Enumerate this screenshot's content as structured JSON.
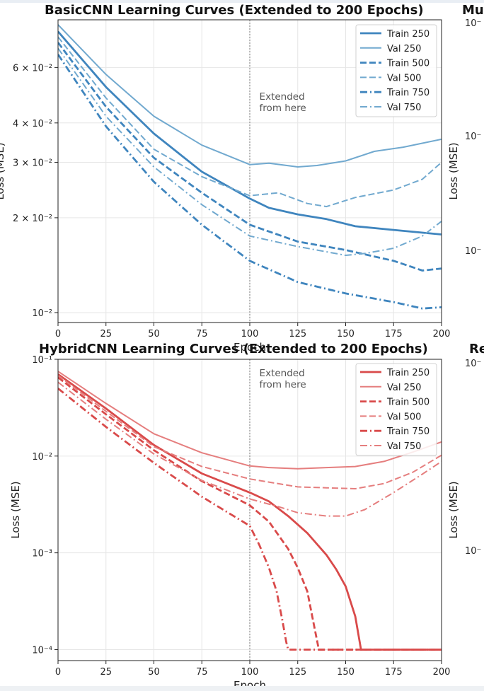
{
  "chart_data": [
    {
      "type": "line",
      "title": "BasicCNN Learning Curves (Extended to 200 Epochs)",
      "xlabel": "Epoch",
      "ylabel": "Loss (MSE)",
      "yscale": "log",
      "xlim": [
        0,
        200
      ],
      "ylim": [
        0.0093,
        0.085
      ],
      "xticks": [
        0,
        25,
        50,
        75,
        100,
        125,
        150,
        175,
        200
      ],
      "yticks": [
        {
          "value": 0.01,
          "label": "10⁻²"
        },
        {
          "value": 0.02,
          "label": "2 × 10⁻²"
        },
        {
          "value": 0.03,
          "label": "3 × 10⁻²"
        },
        {
          "value": 0.04,
          "label": "4 × 10⁻²"
        },
        {
          "value": 0.06,
          "label": "6 × 10⁻²"
        }
      ],
      "grid": true,
      "legend": "top-right",
      "vline": {
        "x": 100
      },
      "annotation": {
        "x": 105,
        "lines": [
          "Extended",
          "from here"
        ]
      },
      "colors": {
        "train": "#3f85be",
        "val": "#71a9cf"
      },
      "series": [
        {
          "name": "Train 250",
          "style": "solid",
          "kind": "train",
          "x": [
            0,
            25,
            50,
            75,
            100,
            110,
            125,
            140,
            155,
            175,
            200
          ],
          "y": [
            0.078,
            0.052,
            0.037,
            0.028,
            0.023,
            0.0215,
            0.0205,
            0.0198,
            0.0188,
            0.0183,
            0.0177
          ]
        },
        {
          "name": "Val 250",
          "style": "solid",
          "kind": "val",
          "x": [
            0,
            25,
            50,
            75,
            100,
            110,
            125,
            135,
            150,
            165,
            180,
            200
          ],
          "y": [
            0.082,
            0.057,
            0.042,
            0.034,
            0.0295,
            0.0298,
            0.029,
            0.0293,
            0.0303,
            0.0325,
            0.0335,
            0.0355
          ]
        },
        {
          "name": "Train 500",
          "style": "dashed",
          "kind": "train",
          "x": [
            0,
            25,
            50,
            75,
            100,
            125,
            150,
            175,
            190,
            200
          ],
          "y": [
            0.072,
            0.045,
            0.031,
            0.024,
            0.019,
            0.0168,
            0.0158,
            0.0146,
            0.0136,
            0.0138
          ]
        },
        {
          "name": "Val 500",
          "style": "dashed",
          "kind": "val",
          "x": [
            0,
            25,
            50,
            75,
            100,
            115,
            130,
            140,
            155,
            175,
            190,
            200
          ],
          "y": [
            0.075,
            0.048,
            0.033,
            0.027,
            0.0235,
            0.024,
            0.0222,
            0.0217,
            0.0232,
            0.0245,
            0.0265,
            0.03
          ]
        },
        {
          "name": "Train 750",
          "style": "dashdot",
          "kind": "train",
          "x": [
            0,
            25,
            50,
            75,
            100,
            125,
            150,
            175,
            190,
            200
          ],
          "y": [
            0.066,
            0.039,
            0.026,
            0.019,
            0.0146,
            0.0125,
            0.0115,
            0.0108,
            0.0103,
            0.0104
          ]
        },
        {
          "name": "Val 750",
          "style": "dashdot",
          "kind": "val",
          "x": [
            0,
            25,
            50,
            75,
            100,
            125,
            150,
            160,
            175,
            190,
            200
          ],
          "y": [
            0.069,
            0.042,
            0.029,
            0.022,
            0.0175,
            0.0162,
            0.0152,
            0.0154,
            0.016,
            0.0175,
            0.0195
          ]
        }
      ]
    },
    {
      "type": "line",
      "title": "HybridCNN Learning Curves (Extended to 200 Epochs)",
      "xlabel": "Epoch",
      "ylabel": "Loss (MSE)",
      "yscale": "log",
      "xlim": [
        0,
        200
      ],
      "ylim": [
        7.7e-05,
        0.1
      ],
      "xticks": [
        0,
        25,
        50,
        75,
        100,
        125,
        150,
        175,
        200
      ],
      "yticks": [
        {
          "value": 0.0001,
          "label": "10⁻⁴"
        },
        {
          "value": 0.001,
          "label": "10⁻³"
        },
        {
          "value": 0.01,
          "label": "10⁻²"
        },
        {
          "value": 0.1,
          "label": "10⁻¹"
        }
      ],
      "grid": true,
      "legend": "top-right",
      "vline": {
        "x": 100
      },
      "annotation": {
        "x": 105,
        "lines": [
          "Extended",
          "from here"
        ]
      },
      "colors": {
        "train": "#d94a4a",
        "val": "#e57e7e"
      },
      "series": [
        {
          "name": "Train 250",
          "style": "solid",
          "kind": "train",
          "x": [
            0,
            25,
            50,
            75,
            100,
            110,
            120,
            130,
            140,
            145,
            150,
            155,
            158,
            200
          ],
          "y": [
            0.07,
            0.031,
            0.013,
            0.0066,
            0.0042,
            0.0034,
            0.0024,
            0.0016,
            0.00095,
            0.00068,
            0.00045,
            0.00022,
            0.0001,
            0.0001
          ]
        },
        {
          "name": "Val 250",
          "style": "solid",
          "kind": "val",
          "x": [
            0,
            25,
            50,
            75,
            100,
            110,
            125,
            140,
            155,
            170,
            185,
            200
          ],
          "y": [
            0.075,
            0.035,
            0.017,
            0.0108,
            0.0079,
            0.0076,
            0.0074,
            0.0076,
            0.0078,
            0.0088,
            0.011,
            0.014
          ]
        },
        {
          "name": "Train 500",
          "style": "dashed",
          "kind": "train",
          "x": [
            0,
            25,
            50,
            75,
            100,
            110,
            120,
            125,
            130,
            133,
            136,
            200
          ],
          "y": [
            0.065,
            0.027,
            0.0115,
            0.0055,
            0.0031,
            0.0021,
            0.0011,
            0.0007,
            0.0004,
            0.0002,
            0.0001,
            0.0001
          ]
        },
        {
          "name": "Val 500",
          "style": "dashed",
          "kind": "val",
          "x": [
            0,
            25,
            50,
            75,
            100,
            125,
            140,
            155,
            170,
            185,
            200
          ],
          "y": [
            0.068,
            0.029,
            0.0125,
            0.0078,
            0.0058,
            0.0048,
            0.0047,
            0.0046,
            0.0052,
            0.0068,
            0.0102
          ]
        },
        {
          "name": "Train 750",
          "style": "dashdot",
          "kind": "train",
          "x": [
            0,
            25,
            50,
            75,
            100,
            105,
            110,
            114,
            117,
            119,
            120,
            200
          ],
          "y": [
            0.05,
            0.02,
            0.0085,
            0.0038,
            0.0019,
            0.0012,
            0.0007,
            0.0004,
            0.0002,
            0.00012,
            0.0001,
            0.0001
          ]
        },
        {
          "name": "Val 750",
          "style": "dashdot",
          "kind": "val",
          "x": [
            0,
            25,
            50,
            75,
            100,
            115,
            125,
            140,
            150,
            160,
            175,
            190,
            200
          ],
          "y": [
            0.058,
            0.024,
            0.0105,
            0.0056,
            0.0036,
            0.003,
            0.0026,
            0.0024,
            0.0024,
            0.0028,
            0.0042,
            0.0065,
            0.0088
          ]
        }
      ]
    }
  ],
  "clipped": {
    "top_title_fragment": "Mu",
    "bottom_title_fragment": "Re",
    "top_ylabel": "Loss (MSE)",
    "bottom_ylabel": "Loss (MSE)",
    "top_ticks": [
      "10⁻",
      "10⁻",
      "10⁻"
    ],
    "bottom_ticks": [
      "10⁻",
      "10⁻"
    ]
  }
}
